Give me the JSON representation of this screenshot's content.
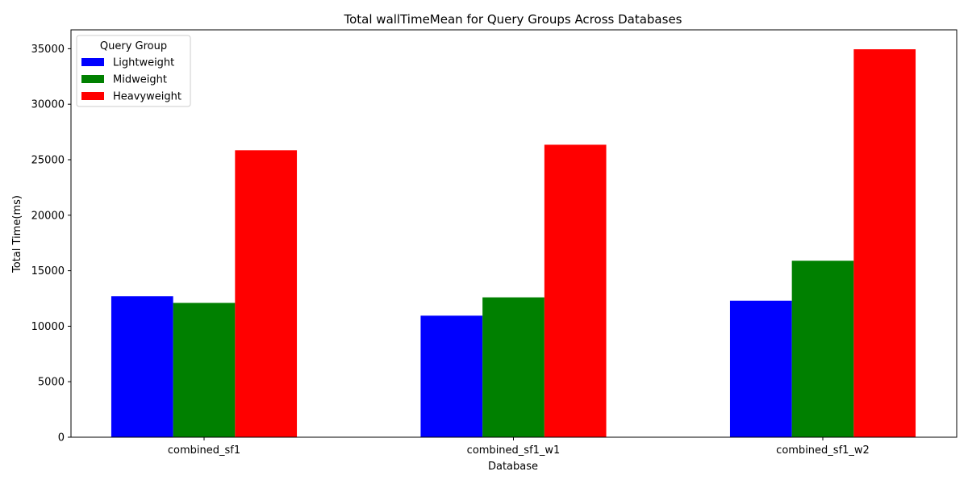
{
  "chart_data": {
    "type": "bar",
    "title": "Total wallTimeMean for Query Groups Across Databases",
    "xlabel": "Database",
    "ylabel": "Total Time(ms)",
    "categories": [
      "combined_sf1",
      "combined_sf1_w1",
      "combined_sf1_w2"
    ],
    "series": [
      {
        "name": "Lightweight",
        "color": "#0000ff",
        "values": [
          12700,
          10950,
          12300
        ]
      },
      {
        "name": "Midweight",
        "color": "#008000",
        "values": [
          12100,
          12600,
          15900
        ]
      },
      {
        "name": "Heavyweight",
        "color": "#ff0000",
        "values": [
          25850,
          26350,
          34950
        ]
      }
    ],
    "ylim": [
      0,
      36700
    ],
    "yticks": [
      0,
      5000,
      10000,
      15000,
      20000,
      25000,
      30000,
      35000
    ],
    "ytick_labels": [
      "0",
      "5000",
      "10000",
      "15000",
      "20000",
      "25000",
      "30000",
      "35000"
    ],
    "legend": {
      "title": "Query Group",
      "position": "top-left"
    },
    "grid": false
  }
}
